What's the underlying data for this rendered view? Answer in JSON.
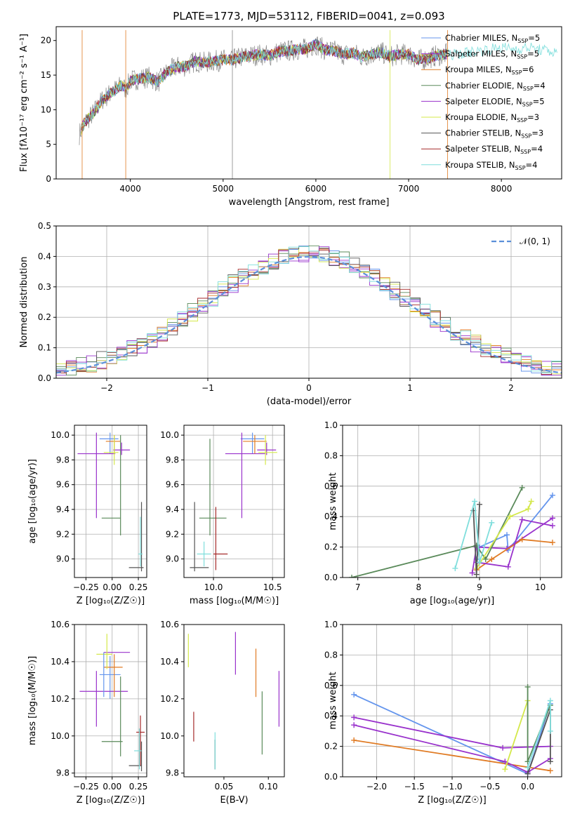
{
  "figure": {
    "title": "PLATE=1773, MJD=53112, FIBERID=0041, z=0.093"
  },
  "models": [
    {
      "name": "Chabrier MILES",
      "nssp": "5",
      "color": "#6495ed"
    },
    {
      "name": "Salpeter MILES",
      "nssp": "5",
      "color": "#9932cc"
    },
    {
      "name": "Kroupa MILES",
      "nssp": "6",
      "color": "#e07b24"
    },
    {
      "name": "Chabrier ELODIE",
      "nssp": "4",
      "color": "#5a8a5a"
    },
    {
      "name": "Salpeter ELODIE",
      "nssp": "5",
      "color": "#9932cc"
    },
    {
      "name": "Kroupa ELODIE",
      "nssp": "3",
      "color": "#d4e84a"
    },
    {
      "name": "Chabrier STELIB",
      "nssp": "3",
      "color": "#555555"
    },
    {
      "name": "Salpeter STELIB",
      "nssp": "4",
      "color": "#a52a2a"
    },
    {
      "name": "Kroupa STELIB",
      "nssp": "4",
      "color": "#7fdedc"
    }
  ],
  "chart_data": [
    {
      "id": "spectrum",
      "type": "line",
      "xlabel": "wavelength [Angstrom, rest frame]",
      "ylabel": "Flux [fλ10⁻¹⁷ erg cm⁻² s⁻¹ A⁻¹]",
      "xlim": [
        3200,
        8650
      ],
      "ylim": [
        0,
        22
      ],
      "xticks": [
        4000,
        5000,
        6000,
        7000,
        8000
      ],
      "yticks": [
        0,
        5,
        10,
        15,
        20
      ],
      "grid": false,
      "legend": "right",
      "series": [
        {
          "name": "data",
          "x": [
            3450,
            3500,
            3600,
            3700,
            3800,
            3900,
            3950,
            4000,
            4100,
            4200,
            4300,
            4400,
            4500,
            4600,
            4700,
            4800,
            4900,
            5000,
            5100,
            5200,
            5300,
            5400,
            5500,
            5600,
            5700,
            5800,
            5900,
            6000,
            6100,
            6200,
            6300,
            6400,
            6500,
            6600,
            6700,
            6800,
            6900,
            7000,
            7100,
            7200,
            7300,
            7400,
            7500,
            7600,
            7700,
            7800,
            7900,
            8000,
            8100,
            8200,
            8300,
            8400,
            8500,
            8600
          ],
          "y": [
            6.5,
            8,
            9.5,
            11.5,
            12.5,
            13.5,
            13,
            14.2,
            14.5,
            14.7,
            14,
            15.5,
            16.2,
            16.3,
            17,
            16.8,
            17,
            17.2,
            17.2,
            17.6,
            17.8,
            18,
            17.8,
            18.4,
            18.5,
            18.7,
            18.8,
            19.5,
            18.6,
            18.5,
            18,
            18.2,
            17.6,
            18,
            18.3,
            17.7,
            18,
            18,
            17.2,
            17.4,
            17.8,
            18,
            18,
            18.2,
            18.4,
            18.6,
            18.8,
            19,
            18.8,
            18.8,
            19,
            18.7,
            18.5,
            18.2
          ]
        }
      ]
    },
    {
      "id": "residuals",
      "type": "line",
      "xlabel": "(data-model)/error",
      "ylabel": "Normed distribution",
      "xlim": [
        -2.5,
        2.5
      ],
      "ylim": [
        0,
        0.5
      ],
      "xticks": [
        -2,
        -1,
        0,
        1,
        2
      ],
      "yticks": [
        0.0,
        0.1,
        0.2,
        0.3,
        0.4,
        0.5
      ],
      "grid": true,
      "legend": "top-right",
      "legend_label": "𝒩(0, 1)",
      "bin_edges_start": -2.5,
      "bin_width": 0.1,
      "reference_mean": 0,
      "reference_sigma": 1
    },
    {
      "id": "age_vs_Z",
      "type": "scatter",
      "xlabel": "Z [log₁₀(Z/Z☉)]",
      "ylabel": "age  [log₁₀(age/yr)]",
      "xlim": [
        -0.36,
        0.33
      ],
      "ylim": [
        8.85,
        10.08
      ],
      "xticks": [
        -0.25,
        0.0,
        0.25
      ],
      "yticks": [
        9.0,
        9.2,
        9.4,
        9.6,
        9.8,
        10.0
      ],
      "grid": true,
      "points": [
        {
          "model": 0,
          "x": -0.02,
          "xerr": [
            0.1,
            0.08
          ],
          "y": 9.97,
          "yerr": [
            0.12,
            0.05
          ]
        },
        {
          "model": 1,
          "x": -0.15,
          "xerr": [
            0.18,
            0.18
          ],
          "y": 9.85,
          "yerr": [
            0.52,
            0.17
          ]
        },
        {
          "model": 2,
          "x": 0.02,
          "xerr": [
            0.08,
            0.06
          ],
          "y": 9.95,
          "yerr": [
            0.1,
            0.05
          ]
        },
        {
          "model": 3,
          "x": -0.1,
          "xerr": [
            0.0,
            0.18
          ],
          "y": 9.33,
          "yerr": [
            0.0,
            0.0
          ]
        },
        {
          "model": 3,
          "x": 0.08,
          "xerr": [
            0.0,
            0.0
          ],
          "y": 9.6,
          "yerr": [
            0.41,
            0.4
          ]
        },
        {
          "model": 4,
          "x": 0.09,
          "xerr": [
            0.08,
            0.08
          ],
          "y": 9.88,
          "yerr": [
            0.04,
            0.06
          ]
        },
        {
          "model": 5,
          "x": 0.02,
          "xerr": [
            0.1,
            0.04
          ],
          "y": 9.86,
          "yerr": [
            0.1,
            0.14
          ]
        },
        {
          "model": 6,
          "x": 0.22,
          "xerr": [
            0.06,
            0.08
          ],
          "y": 8.93,
          "yerr": [
            0.0,
            0.0
          ]
        },
        {
          "model": 6,
          "x": 0.28,
          "xerr": [
            0.0,
            0.0
          ],
          "y": 9.2,
          "yerr": [
            0.3,
            0.26
          ]
        },
        {
          "model": 8,
          "x": 0.27,
          "xerr": [
            0.02,
            0.02
          ],
          "y": 9.04,
          "yerr": [
            0.1,
            0.3
          ]
        }
      ]
    },
    {
      "id": "age_vs_mass",
      "type": "scatter",
      "xlabel": "mass [log₁₀(M/M☉)]",
      "ylabel": "",
      "xlim": [
        9.75,
        10.6
      ],
      "ylim": [
        8.85,
        10.08
      ],
      "xticks": [
        10.0,
        10.5
      ],
      "yticks": [
        9.0,
        9.2,
        9.4,
        9.6,
        9.8,
        10.0
      ],
      "grid": true,
      "points": [
        {
          "model": 0,
          "x": 10.33,
          "xerr": [
            0.1,
            0.1
          ],
          "y": 9.97,
          "yerr": [
            0.12,
            0.05
          ]
        },
        {
          "model": 1,
          "x": 10.24,
          "xerr": [
            0.14,
            0.2
          ],
          "y": 9.85,
          "yerr": [
            0.52,
            0.17
          ]
        },
        {
          "model": 2,
          "x": 10.35,
          "xerr": [
            0.1,
            0.1
          ],
          "y": 9.95,
          "yerr": [
            0.1,
            0.05
          ]
        },
        {
          "model": 3,
          "x": 9.98,
          "xerr": [
            0.1,
            0.13
          ],
          "y": 9.33,
          "yerr": [
            0.0,
            0.0
          ]
        },
        {
          "model": 3,
          "x": 9.97,
          "xerr": [
            0.0,
            0.0
          ],
          "y": 9.6,
          "yerr": [
            0.41,
            0.37
          ]
        },
        {
          "model": 4,
          "x": 10.45,
          "xerr": [
            0.08,
            0.08
          ],
          "y": 9.88,
          "yerr": [
            0.04,
            0.06
          ]
        },
        {
          "model": 5,
          "x": 10.44,
          "xerr": [
            0.06,
            0.1
          ],
          "y": 9.86,
          "yerr": [
            0.1,
            0.14
          ]
        },
        {
          "model": 6,
          "x": 9.84,
          "xerr": [
            0.04,
            0.12
          ],
          "y": 8.93,
          "yerr": [
            0.0,
            0.0
          ]
        },
        {
          "model": 6,
          "x": 9.84,
          "xerr": [
            0.0,
            0.0
          ],
          "y": 9.2,
          "yerr": [
            0.3,
            0.26
          ]
        },
        {
          "model": 7,
          "x": 10.02,
          "xerr": [
            0.02,
            0.1
          ],
          "y": 9.04,
          "yerr": [
            0.13,
            0.38
          ]
        },
        {
          "model": 8,
          "x": 9.92,
          "xerr": [
            0.06,
            0.06
          ],
          "y": 9.04,
          "yerr": [
            0.1,
            0.1
          ]
        }
      ]
    },
    {
      "id": "weight_vs_age",
      "type": "line",
      "xlabel": "age  [log₁₀(age/yr)]",
      "ylabel": "mass weight",
      "xlim": [
        6.75,
        10.35
      ],
      "ylim": [
        0,
        1
      ],
      "xticks": [
        7,
        8,
        9,
        10
      ],
      "yticks": [
        0.0,
        0.2,
        0.4,
        0.6,
        0.8,
        1.0
      ],
      "grid": true,
      "series": [
        {
          "model": 0,
          "x": [
            8.95,
            9.0,
            9.45,
            9.47,
            10.2
          ],
          "y": [
            0.12,
            0.2,
            0.28,
            0.18,
            0.54
          ]
        },
        {
          "model": 1,
          "x": [
            8.88,
            8.95,
            9.45,
            10.2
          ],
          "y": [
            0.03,
            0.2,
            0.19,
            0.39
          ]
        },
        {
          "model": 2,
          "x": [
            8.95,
            9.2,
            9.7,
            10.2
          ],
          "y": [
            0.05,
            0.12,
            0.25,
            0.23
          ]
        },
        {
          "model": 3,
          "x": [
            6.9,
            8.95,
            9.1,
            9.7
          ],
          "y": [
            0.0,
            0.21,
            0.12,
            0.59
          ]
        },
        {
          "model": 4,
          "x": [
            8.95,
            9.47,
            9.7,
            10.2
          ],
          "y": [
            0.1,
            0.07,
            0.38,
            0.34
          ]
        },
        {
          "model": 5,
          "x": [
            8.95,
            9.5,
            9.8,
            9.85
          ],
          "y": [
            0.06,
            0.4,
            0.45,
            0.5
          ]
        },
        {
          "model": 6,
          "x": [
            8.9,
            8.95,
            9.0
          ],
          "y": [
            0.44,
            0.02,
            0.48
          ]
        },
        {
          "model": 8,
          "x": [
            8.6,
            8.92,
            9.0,
            9.2
          ],
          "y": [
            0.06,
            0.5,
            0.1,
            0.36
          ]
        }
      ]
    },
    {
      "id": "mass_vs_Z",
      "type": "scatter",
      "xlabel": "Z [log₁₀(Z/Z☉)]",
      "ylabel": "mass [log₁₀(M/M☉)]",
      "xlim": [
        -0.36,
        0.33
      ],
      "ylim": [
        9.78,
        10.6
      ],
      "xticks": [
        -0.25,
        0.0,
        0.25
      ],
      "yticks": [
        9.8,
        10.0,
        10.2,
        10.4,
        10.6
      ],
      "grid": true,
      "points": [
        {
          "model": 0,
          "x": -0.02,
          "xerr": [
            0.1,
            0.1
          ],
          "y": 10.33,
          "yerr": [
            0.13,
            0.1
          ]
        },
        {
          "model": 1,
          "x": -0.15,
          "xerr": [
            0.16,
            0.3
          ],
          "y": 10.24,
          "yerr": [
            0.19,
            0.11
          ]
        },
        {
          "model": 2,
          "x": 0.02,
          "xerr": [
            0.1,
            0.08
          ],
          "y": 10.37,
          "yerr": [
            0.16,
            0.07
          ]
        },
        {
          "model": 3,
          "x": -0.1,
          "xerr": [
            0.0,
            0.2
          ],
          "y": 9.97,
          "yerr": [
            0.0,
            0.0
          ]
        },
        {
          "model": 3,
          "x": 0.08,
          "xerr": [
            0.0,
            0.0
          ],
          "y": 10.2,
          "yerr": [
            0.31,
            0.12
          ]
        },
        {
          "model": 4,
          "x": 0.05,
          "xerr": [
            0.13,
            0.12
          ],
          "y": 10.45,
          "yerr": [
            0.0,
            0.0
          ]
        },
        {
          "model": 5,
          "x": -0.05,
          "xerr": [
            0.1,
            0.05
          ],
          "y": 10.44,
          "yerr": [
            0.08,
            0.11
          ]
        },
        {
          "model": 6,
          "x": 0.22,
          "xerr": [
            0.06,
            0.06
          ],
          "y": 9.84,
          "yerr": [
            0.0,
            0.0
          ]
        },
        {
          "model": 6,
          "x": 0.28,
          "xerr": [
            0.0,
            0.0
          ],
          "y": 9.9,
          "yerr": [
            0.09,
            0.07
          ]
        },
        {
          "model": 7,
          "x": 0.27,
          "xerr": [
            0.04,
            0.04
          ],
          "y": 10.02,
          "yerr": [
            0.18,
            0.09
          ]
        },
        {
          "model": 8,
          "x": 0.26,
          "xerr": [
            0.05,
            0.02
          ],
          "y": 9.92,
          "yerr": [
            0.1,
            0.12
          ]
        },
        {
          "model": 0,
          "x": -0.08,
          "xerr": [
            0.0,
            0.0
          ],
          "y": 10.45,
          "yerr": [
            0.24,
            0.0
          ]
        }
      ]
    },
    {
      "id": "mass_vs_ebv",
      "type": "scatter",
      "xlabel": "E(B-V)",
      "ylabel": "",
      "xlim": [
        0.005,
        0.118
      ],
      "ylim": [
        9.78,
        10.6
      ],
      "xticks": [
        0.05,
        0.1
      ],
      "yticks": [
        9.8,
        10.0,
        10.2,
        10.4,
        10.6
      ],
      "grid": false,
      "points": [
        {
          "model": 5,
          "x": 0.01,
          "y": 10.46,
          "yerr": [
            0.09,
            0.09
          ]
        },
        {
          "model": 7,
          "x": 0.016,
          "y": 10.05,
          "yerr": [
            0.08,
            0.08
          ]
        },
        {
          "model": 6,
          "x": 0.04,
          "y": 9.9,
          "yerr": [
            0.08,
            0.08
          ]
        },
        {
          "model": 8,
          "x": 0.04,
          "y": 9.92,
          "yerr": [
            0.1,
            0.1
          ]
        },
        {
          "model": 4,
          "x": 0.063,
          "y": 10.45,
          "yerr": [
            0.12,
            0.11
          ]
        },
        {
          "model": 2,
          "x": 0.086,
          "y": 10.37,
          "yerr": [
            0.16,
            0.1
          ]
        },
        {
          "model": 3,
          "x": 0.093,
          "y": 10.07,
          "yerr": [
            0.17,
            0.17
          ]
        },
        {
          "model": 1,
          "x": 0.112,
          "y": 10.2,
          "yerr": [
            0.15,
            0.15
          ]
        }
      ]
    },
    {
      "id": "weight_vs_Z",
      "type": "line",
      "xlabel": "Z [log₁₀(Z/Z☉)]",
      "ylabel": "mass weight",
      "xlim": [
        -2.45,
        0.45
      ],
      "ylim": [
        0,
        1
      ],
      "xticks": [
        -2.0,
        -1.5,
        -1.0,
        -0.5,
        0.0
      ],
      "yticks": [
        0.0,
        0.2,
        0.4,
        0.6,
        0.8,
        1.0
      ],
      "grid": true,
      "series": [
        {
          "model": 0,
          "x": [
            -2.3,
            0.0,
            0.3
          ],
          "y": [
            0.54,
            0.02,
            0.48
          ]
        },
        {
          "model": 1,
          "x": [
            -2.3,
            -0.33,
            0.3
          ],
          "y": [
            0.39,
            0.19,
            0.2
          ]
        },
        {
          "model": 2,
          "x": [
            -2.3,
            0.3
          ],
          "y": [
            0.24,
            0.04
          ]
        },
        {
          "model": 4,
          "x": [
            -2.3,
            -0.3,
            0.0,
            0.3
          ],
          "y": [
            0.34,
            0.1,
            0.03,
            0.12
          ]
        },
        {
          "model": 5,
          "x": [
            -0.3,
            0.0
          ],
          "y": [
            0.05,
            0.5
          ]
        },
        {
          "model": 3,
          "x": [
            0.0,
            0.0,
            0.3
          ],
          "y": [
            0.59,
            0.1,
            0.47
          ]
        },
        {
          "model": 6,
          "x": [
            0.0,
            0.3,
            0.3
          ],
          "y": [
            0.02,
            0.44,
            0.1
          ]
        },
        {
          "model": 8,
          "x": [
            0.0,
            0.3,
            0.3
          ],
          "y": [
            0.06,
            0.5,
            0.3
          ]
        }
      ]
    }
  ]
}
